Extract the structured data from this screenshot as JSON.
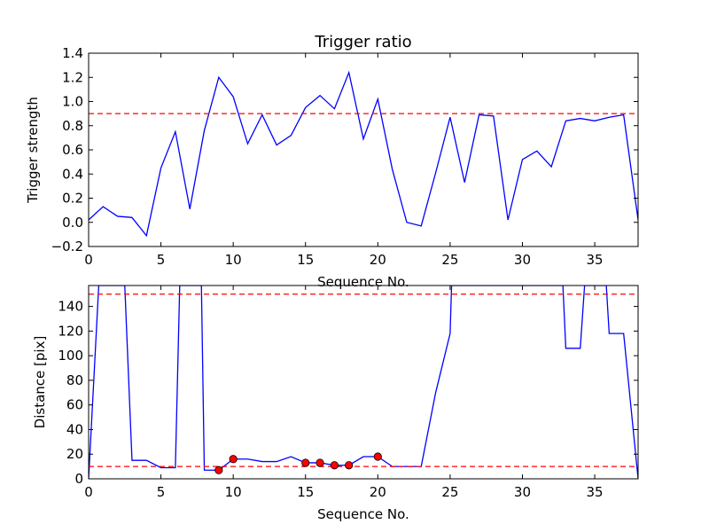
{
  "chart_data": [
    {
      "type": "line",
      "title": "Trigger ratio",
      "xlabel": "Sequence No.",
      "ylabel": "Trigger strength",
      "xlim": [
        0,
        38
      ],
      "ylim": [
        -0.2,
        1.4
      ],
      "xticks": [
        0,
        5,
        10,
        15,
        20,
        25,
        30,
        35
      ],
      "yticks": [
        -0.2,
        0.0,
        0.2,
        0.4,
        0.6,
        0.8,
        1.0,
        1.2,
        1.4
      ],
      "ytick_labels": [
        "−0.2",
        "0.0",
        "0.2",
        "0.4",
        "0.6",
        "0.8",
        "1.0",
        "1.2",
        "1.4"
      ],
      "grid": false,
      "series": [
        {
          "color": "#0000ff",
          "style": "solid",
          "x": [
            0,
            1,
            2,
            3,
            4,
            5,
            6,
            7,
            8,
            9,
            10,
            11,
            12,
            13,
            14,
            15,
            16,
            17,
            18,
            19,
            20,
            21,
            22,
            23,
            24,
            25,
            26,
            27,
            28,
            29,
            30,
            31,
            32,
            33,
            34,
            35,
            36,
            37,
            38
          ],
          "y": [
            0.02,
            0.13,
            0.05,
            0.04,
            -0.11,
            0.45,
            0.75,
            0.11,
            0.76,
            1.2,
            1.04,
            0.65,
            0.89,
            0.64,
            0.72,
            0.95,
            1.05,
            0.94,
            1.24,
            0.69,
            1.02,
            0.44,
            0.0,
            -0.03,
            0.41,
            0.87,
            0.33,
            0.89,
            0.88,
            0.02,
            0.52,
            0.59,
            0.46,
            0.84,
            0.86,
            0.84,
            0.87,
            0.89,
            0.02
          ]
        }
      ],
      "hlines": [
        {
          "y": 0.9,
          "color": "#ff0000",
          "style": "dashed"
        }
      ]
    },
    {
      "type": "line",
      "title": "",
      "xlabel": "Sequence No.",
      "ylabel": "Distance [pix]",
      "xlim": [
        0,
        38
      ],
      "ylim": [
        0,
        157
      ],
      "xticks": [
        0,
        5,
        10,
        15,
        20,
        25,
        30,
        35
      ],
      "yticks": [
        0,
        20,
        40,
        60,
        80,
        100,
        120,
        140
      ],
      "grid": false,
      "series": [
        {
          "color": "#0000ff",
          "style": "solid",
          "x": [
            0,
            0.7,
            2.5,
            3,
            4,
            5,
            6,
            6.3,
            7.8,
            8,
            9,
            10,
            11,
            12,
            13,
            14,
            15,
            16,
            17,
            18,
            19,
            20,
            21,
            22,
            23,
            24,
            25,
            25.1,
            32.8,
            33,
            34,
            34.3,
            35.8,
            36,
            37,
            38
          ],
          "y": [
            0,
            157,
            157,
            15,
            15,
            9,
            9,
            157,
            157,
            7,
            7,
            16,
            16,
            14,
            14,
            18,
            13,
            13,
            11,
            11,
            18,
            18,
            10,
            10,
            10,
            70,
            118,
            157,
            157,
            106,
            106,
            157,
            157,
            118,
            118,
            0
          ]
        }
      ],
      "markers": {
        "color": "#ff0000",
        "x": [
          9,
          10,
          15,
          16,
          17,
          18,
          20
        ],
        "y": [
          7,
          16,
          13,
          13,
          11,
          11,
          18
        ]
      },
      "hlines": [
        {
          "y": 150,
          "color": "#ff0000",
          "style": "dashed"
        },
        {
          "y": 10,
          "color": "#ff0000",
          "style": "dashed"
        }
      ]
    }
  ]
}
